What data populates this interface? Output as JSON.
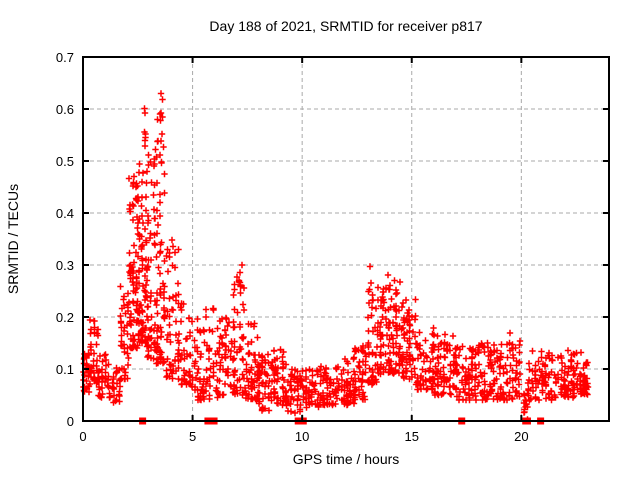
{
  "chart_data": {
    "type": "scatter",
    "title": "Day 188 of 2021, SRMTID for receiver p817",
    "xlabel": "GPS time / hours",
    "ylabel": "SRMTID / TECUs",
    "xlim": [
      0,
      24
    ],
    "ylim": [
      0,
      0.7
    ],
    "xticks": [
      0,
      5,
      10,
      15,
      20
    ],
    "yticks": [
      0,
      0.1,
      0.2,
      0.3,
      0.4,
      0.5,
      0.6,
      0.7
    ],
    "grid": true,
    "grid_color": "#a9a9a9",
    "marker": "plus",
    "marker_color": "#ff0000",
    "border_color": "#000000",
    "series_name": "SRMTID",
    "seed": 42,
    "density_profile": [
      [
        0.02,
        0.35,
        28,
        0.055,
        0.135,
        1.2
      ],
      [
        0.3,
        0.75,
        40,
        0.07,
        0.195,
        1.4
      ],
      [
        0.7,
        1.25,
        32,
        0.045,
        0.13,
        1.3
      ],
      [
        1.2,
        1.75,
        26,
        0.03,
        0.105,
        1.2
      ],
      [
        1.7,
        2.15,
        40,
        0.08,
        0.26,
        1.5
      ],
      [
        2.1,
        2.55,
        75,
        0.14,
        0.47,
        1.7
      ],
      [
        2.5,
        2.95,
        75,
        0.15,
        0.56,
        1.8
      ],
      [
        2.9,
        3.35,
        60,
        0.12,
        0.52,
        1.8
      ],
      [
        3.35,
        3.8,
        70,
        0.11,
        0.6,
        1.8
      ],
      [
        3.8,
        4.45,
        55,
        0.08,
        0.35,
        1.7
      ],
      [
        4.45,
        4.95,
        38,
        0.07,
        0.24,
        1.6
      ],
      [
        4.95,
        5.45,
        34,
        0.04,
        0.2,
        1.6
      ],
      [
        5.45,
        6.2,
        48,
        0.04,
        0.22,
        1.6
      ],
      [
        6.2,
        6.85,
        46,
        0.05,
        0.2,
        1.5
      ],
      [
        6.85,
        7.4,
        55,
        0.05,
        0.3,
        1.8
      ],
      [
        7.4,
        8.05,
        50,
        0.04,
        0.19,
        1.5
      ],
      [
        8.0,
        8.7,
        55,
        0.02,
        0.13,
        1.3
      ],
      [
        8.7,
        9.35,
        50,
        0.03,
        0.14,
        1.3
      ],
      [
        9.3,
        10.05,
        45,
        0.015,
        0.1,
        1.2
      ],
      [
        10.0,
        10.8,
        50,
        0.025,
        0.1,
        1.2
      ],
      [
        10.8,
        11.65,
        55,
        0.03,
        0.105,
        1.2
      ],
      [
        11.6,
        12.45,
        55,
        0.03,
        0.125,
        1.3
      ],
      [
        12.4,
        13.0,
        45,
        0.04,
        0.15,
        1.4
      ],
      [
        13.0,
        13.45,
        38,
        0.07,
        0.27,
        1.7
      ],
      [
        13.4,
        14.05,
        62,
        0.09,
        0.26,
        1.5
      ],
      [
        14.0,
        14.65,
        58,
        0.09,
        0.28,
        1.6
      ],
      [
        14.6,
        15.25,
        52,
        0.08,
        0.235,
        1.5
      ],
      [
        15.2,
        16.05,
        55,
        0.06,
        0.18,
        1.4
      ],
      [
        16.0,
        17.0,
        72,
        0.05,
        0.17,
        1.4
      ],
      [
        17.0,
        18.0,
        72,
        0.04,
        0.145,
        1.3
      ],
      [
        18.0,
        19.0,
        72,
        0.04,
        0.15,
        1.3
      ],
      [
        19.0,
        20.0,
        70,
        0.04,
        0.155,
        1.3
      ],
      [
        20.1,
        20.35,
        14,
        0.0,
        0.055,
        1.0
      ],
      [
        20.3,
        21.5,
        70,
        0.04,
        0.135,
        1.3
      ],
      [
        21.5,
        22.5,
        68,
        0.045,
        0.14,
        1.3
      ],
      [
        22.5,
        23.1,
        48,
        0.05,
        0.135,
        1.3
      ]
    ],
    "outliers": [
      [
        3.55,
        0.63
      ],
      [
        3.62,
        0.618
      ],
      [
        2.8,
        0.601
      ],
      [
        2.83,
        0.592
      ],
      [
        3.56,
        0.592
      ],
      [
        3.63,
        0.585
      ],
      [
        2.8,
        0.556
      ],
      [
        2.86,
        0.545
      ],
      [
        3.6,
        0.552
      ],
      [
        3.3,
        0.522
      ],
      [
        3.35,
        0.508
      ],
      [
        2.55,
        0.478
      ],
      [
        2.32,
        0.47
      ],
      [
        2.28,
        0.452
      ],
      [
        13.1,
        0.297
      ],
      [
        13.13,
        0.265
      ],
      [
        7.25,
        0.3
      ],
      [
        7.02,
        0.277
      ],
      [
        13.92,
        0.281
      ],
      [
        14.22,
        0.27
      ],
      [
        19.48,
        0.169
      ],
      [
        0.52,
        0.192
      ],
      [
        7.18,
        0.246
      ]
    ],
    "zero_cluster_x": [
      2.72,
      5.7,
      5.98,
      9.82,
      9.95,
      10.05,
      17.28,
      20.2,
      20.28,
      20.88
    ]
  }
}
